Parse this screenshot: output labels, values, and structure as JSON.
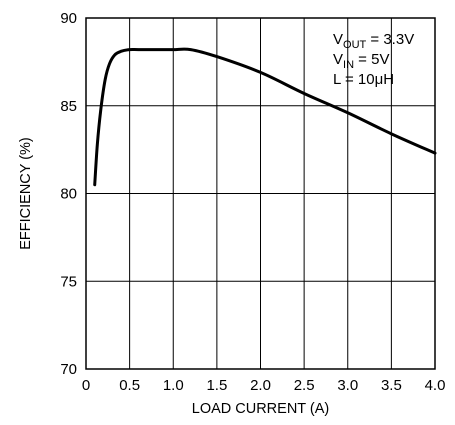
{
  "chart_data": {
    "type": "line",
    "title": "",
    "xlabel": "LOAD CURRENT (A)",
    "ylabel": "EFFICIENCY (%)",
    "xlim": [
      0,
      4.0
    ],
    "ylim": [
      70,
      90
    ],
    "x_ticks": [
      "0",
      "0.5",
      "1.0",
      "1.5",
      "2.0",
      "2.5",
      "3.0",
      "3.5",
      "4.0"
    ],
    "y_ticks": [
      "70",
      "75",
      "80",
      "85",
      "90"
    ],
    "grid": true,
    "annotations": [
      {
        "main": "V",
        "sub": "OUT",
        "rest": " = 3.3V"
      },
      {
        "main": "V",
        "sub": "IN",
        "rest": " = 5V"
      },
      {
        "main": "L = 10μH",
        "sub": "",
        "rest": ""
      }
    ],
    "series": [
      {
        "x": [
          0.1,
          0.13,
          0.17,
          0.22,
          0.27,
          0.33,
          0.4,
          0.5,
          0.6,
          0.8,
          1.0,
          1.2,
          1.5,
          2.0,
          2.5,
          3.0,
          3.5,
          4.0
        ],
        "y": [
          80.5,
          82.8,
          84.8,
          86.5,
          87.4,
          87.9,
          88.1,
          88.2,
          88.2,
          88.2,
          88.2,
          88.2,
          87.8,
          86.9,
          85.7,
          84.6,
          83.4,
          82.3
        ]
      }
    ]
  }
}
